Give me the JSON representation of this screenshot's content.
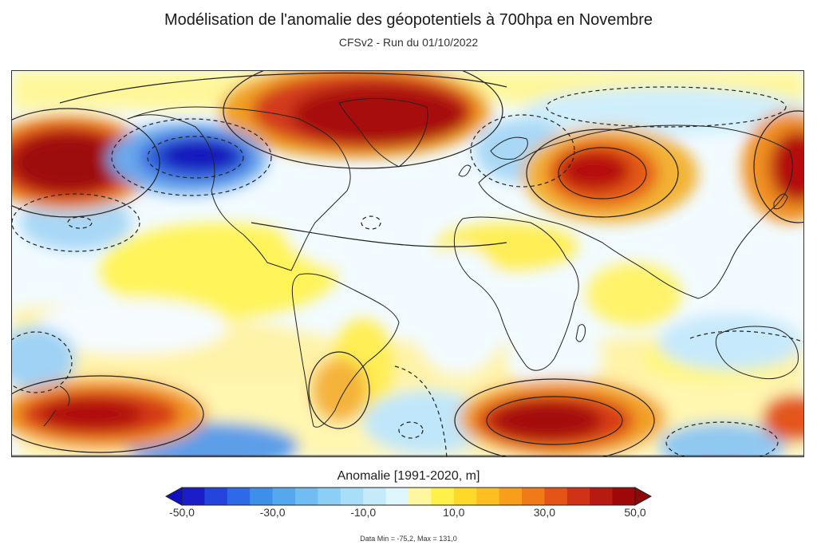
{
  "title": "Modélisation de l'anomalie des géopotentiels à 700hpa en Novembre",
  "subtitle": "CFSv2 - Run du 01/10/2022",
  "legend": {
    "title": "Anomalie [1991-2020, m]",
    "ticks": [
      "-50,0",
      "-30,0",
      "-10,0",
      "10,0",
      "30,0",
      "50,0"
    ],
    "range": [
      -50,
      50
    ],
    "step": 5
  },
  "data_range": "Data Min = -75,2, Max = 131,0",
  "colors": {
    "neg_strong": "#1520c8",
    "neg_mid": "#3d8fe8",
    "neg_weak": "#bfe6fa",
    "neutral": "#f2fbff",
    "pos_weak": "#fff24d",
    "pos_mid": "#f59a1a",
    "pos_strong": "#9e0808"
  }
}
